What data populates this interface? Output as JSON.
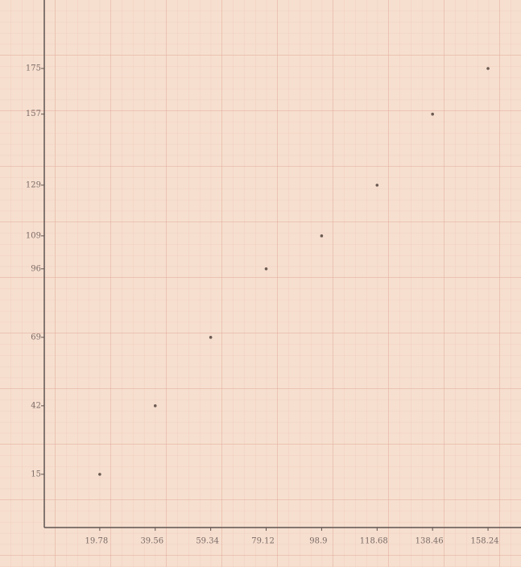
{
  "chart_data": {
    "type": "scatter",
    "x": [
      19.78,
      39.56,
      59.34,
      79.12,
      98.9,
      118.68,
      138.46,
      158.24
    ],
    "values": [
      15,
      42,
      69,
      96,
      109,
      129,
      157,
      175
    ],
    "color": "#6b5a52",
    "xlim": [
      0,
      170
    ],
    "ylim": [
      -6,
      202
    ],
    "xticks": [
      19.78,
      39.56,
      59.34,
      79.12,
      98.9,
      118.68,
      138.46,
      158.24
    ],
    "yticks": [
      15,
      42,
      69,
      96,
      109,
      129,
      157,
      175
    ],
    "grid": true
  }
}
